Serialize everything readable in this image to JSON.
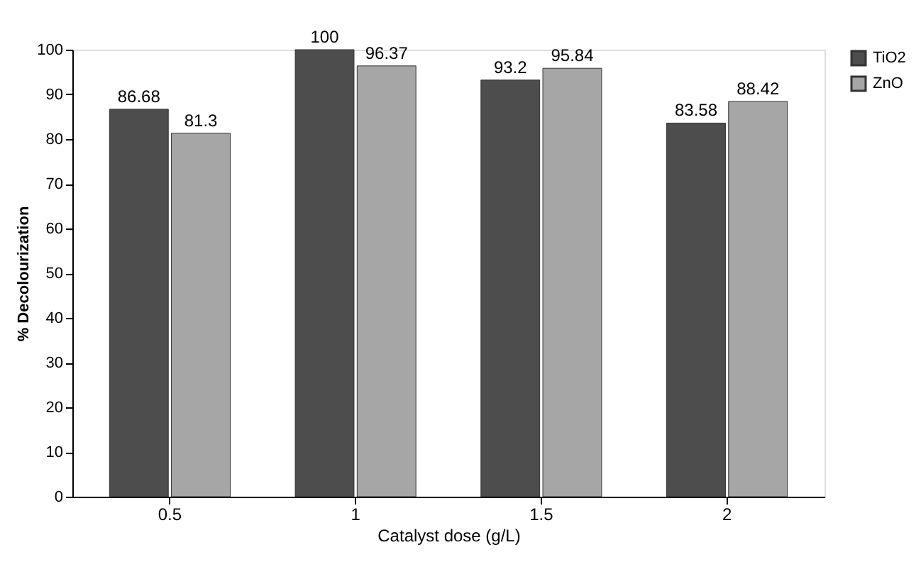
{
  "chart_data": {
    "type": "bar",
    "xlabel": "Catalyst dose (g/L)",
    "ylabel": "% Decolourization",
    "categories": [
      "0.5",
      "1",
      "1.5",
      "2"
    ],
    "series": [
      {
        "name": "TiO2",
        "color": "#4d4d4d",
        "values": [
          86.68,
          100,
          93.2,
          83.58
        ]
      },
      {
        "name": "ZnO",
        "color": "#a6a6a6",
        "values": [
          81.3,
          96.37,
          95.84,
          88.42
        ]
      }
    ],
    "ylim": [
      0,
      100
    ],
    "yticks": [
      0,
      10,
      20,
      30,
      40,
      50,
      60,
      70,
      80,
      90,
      100
    ],
    "grid": false,
    "legend": "right",
    "data_labels": true
  }
}
